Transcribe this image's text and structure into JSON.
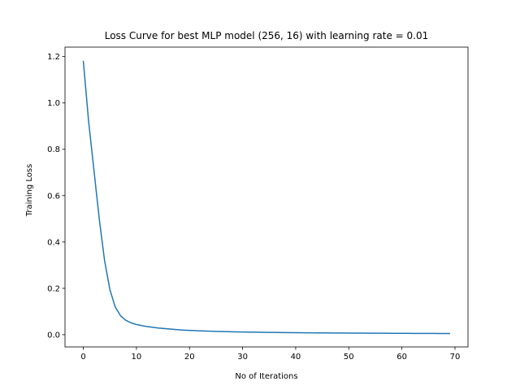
{
  "chart_data": {
    "type": "line",
    "title": "Loss Curve for best MLP model (256, 16) with learning rate = 0.01",
    "xlabel": "No of Iterations",
    "ylabel": "Training Loss",
    "xlim": [
      -3.45,
      72.45
    ],
    "ylim": [
      -0.0529,
      1.2409
    ],
    "xticks": [
      0,
      10,
      20,
      30,
      40,
      50,
      60,
      70
    ],
    "xtick_labels": [
      "0",
      "10",
      "20",
      "30",
      "40",
      "50",
      "60",
      "70"
    ],
    "yticks": [
      0.0,
      0.2,
      0.4,
      0.6,
      0.8,
      1.0,
      1.2
    ],
    "ytick_labels": [
      "0.0",
      "0.2",
      "0.4",
      "0.6",
      "0.8",
      "1.0",
      "1.2"
    ],
    "grid": false,
    "legend": "none",
    "series": [
      {
        "color": "#1f77b4",
        "x": [
          0,
          1,
          2,
          3,
          4,
          5,
          6,
          7,
          8,
          9,
          10,
          11,
          12,
          13,
          14,
          15,
          16,
          17,
          18,
          19,
          20,
          21,
          22,
          23,
          24,
          25,
          26,
          27,
          28,
          29,
          30,
          31,
          32,
          33,
          34,
          35,
          36,
          37,
          38,
          39,
          40,
          41,
          42,
          43,
          44,
          45,
          46,
          47,
          48,
          49,
          50,
          51,
          52,
          53,
          54,
          55,
          56,
          57,
          58,
          59,
          60,
          61,
          62,
          63,
          64,
          65,
          66,
          67,
          68,
          69
        ],
        "y": [
          1.18,
          0.92,
          0.71,
          0.5,
          0.32,
          0.195,
          0.12,
          0.082,
          0.062,
          0.051,
          0.044,
          0.039,
          0.035,
          0.032,
          0.029,
          0.027,
          0.025,
          0.023,
          0.021,
          0.0195,
          0.0185,
          0.0175,
          0.0165,
          0.0158,
          0.015,
          0.0143,
          0.0137,
          0.0131,
          0.0126,
          0.0121,
          0.0117,
          0.0113,
          0.0109,
          0.0105,
          0.0102,
          0.0099,
          0.0096,
          0.0093,
          0.0091,
          0.0088,
          0.0086,
          0.0084,
          0.0082,
          0.008,
          0.0078,
          0.0076,
          0.0075,
          0.0073,
          0.0072,
          0.007,
          0.0069,
          0.0068,
          0.0066,
          0.0065,
          0.0064,
          0.0063,
          0.0062,
          0.0061,
          0.006,
          0.0059,
          0.0058,
          0.0057,
          0.0056,
          0.0055,
          0.0054,
          0.0053,
          0.0052,
          0.0051,
          0.005,
          0.005
        ]
      }
    ]
  }
}
